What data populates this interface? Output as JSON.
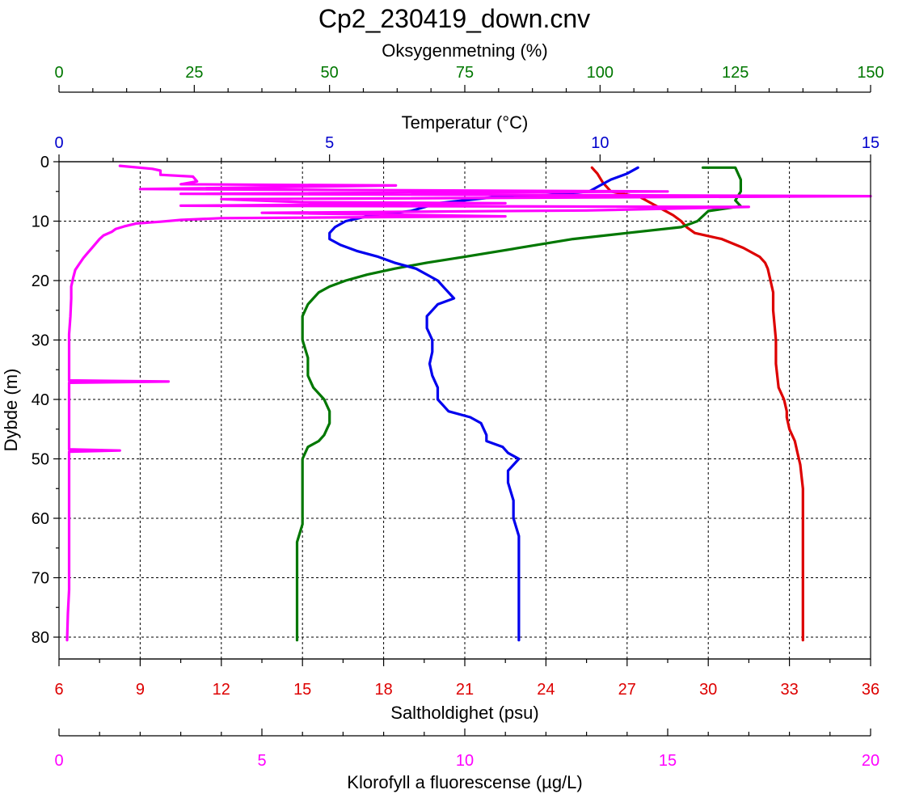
{
  "chart_data": {
    "type": "line",
    "title": "Cp2_230419_down.cnv",
    "y_axis": {
      "label": "Dybde (m)",
      "range": [
        0,
        85
      ],
      "ticks": [
        0,
        10,
        20,
        30,
        40,
        50,
        60,
        70,
        80
      ],
      "inverted": true
    },
    "axes": {
      "oxygen": {
        "label": "Oksygenmetning (%)",
        "range": [
          0,
          150
        ],
        "ticks": [
          0,
          25,
          50,
          75,
          100,
          125,
          150
        ],
        "color": "#007700",
        "position": "top-outer"
      },
      "temperature": {
        "label": "Temperatur (°C)",
        "range": [
          0,
          15
        ],
        "ticks": [
          0,
          5,
          10,
          15
        ],
        "color": "#0000cc",
        "position": "top-inner"
      },
      "salinity": {
        "label": "Saltholdighet (psu)",
        "range": [
          6,
          36
        ],
        "ticks": [
          6,
          9,
          12,
          15,
          18,
          21,
          24,
          27,
          30,
          33,
          36
        ],
        "color": "#dd0000",
        "position": "bottom-inner"
      },
      "chlorophyll": {
        "label": "Klorofyll a fluorescense (µg/L)",
        "range": [
          0,
          20
        ],
        "ticks": [
          0,
          5,
          10,
          15,
          20
        ],
        "color": "#ff00ff",
        "position": "bottom-outer"
      }
    },
    "series": [
      {
        "name": "Temperatur",
        "axis": "temperature",
        "color": "#0000ee",
        "points": [
          [
            10.7,
            1
          ],
          [
            10.5,
            2
          ],
          [
            10.2,
            3
          ],
          [
            10.0,
            4
          ],
          [
            9.8,
            5
          ],
          [
            9.0,
            5.6
          ],
          [
            8.0,
            6.0
          ],
          [
            7.0,
            7.0
          ],
          [
            6.5,
            8.3
          ],
          [
            5.8,
            9.0
          ],
          [
            5.3,
            10
          ],
          [
            5.1,
            11
          ],
          [
            5.0,
            12
          ],
          [
            5.0,
            13
          ],
          [
            5.2,
            14
          ],
          [
            5.5,
            15
          ],
          [
            5.9,
            16
          ],
          [
            6.2,
            17
          ],
          [
            6.6,
            18
          ],
          [
            6.8,
            19
          ],
          [
            7.0,
            20
          ],
          [
            7.1,
            21
          ],
          [
            7.2,
            22
          ],
          [
            7.3,
            23
          ],
          [
            7.0,
            24
          ],
          [
            6.9,
            25
          ],
          [
            6.8,
            26
          ],
          [
            6.8,
            28
          ],
          [
            6.9,
            30
          ],
          [
            6.9,
            32
          ],
          [
            6.85,
            34
          ],
          [
            6.9,
            36
          ],
          [
            7.0,
            38
          ],
          [
            7.0,
            40
          ],
          [
            7.1,
            41
          ],
          [
            7.2,
            42
          ],
          [
            7.6,
            43
          ],
          [
            7.8,
            44
          ],
          [
            7.9,
            46
          ],
          [
            7.9,
            47
          ],
          [
            8.2,
            48
          ],
          [
            8.3,
            49
          ],
          [
            8.5,
            50
          ],
          [
            8.3,
            52
          ],
          [
            8.3,
            54
          ],
          [
            8.4,
            57
          ],
          [
            8.4,
            60
          ],
          [
            8.5,
            63
          ],
          [
            8.5,
            66
          ],
          [
            8.5,
            70
          ],
          [
            8.5,
            73
          ],
          [
            8.5,
            77
          ],
          [
            8.5,
            80.5
          ]
        ]
      },
      {
        "name": "Oksygenmetning",
        "axis": "oxygen",
        "color": "#007700",
        "points": [
          [
            119,
            1
          ],
          [
            125,
            1
          ],
          [
            126,
            3
          ],
          [
            126,
            5
          ],
          [
            125,
            6.5
          ],
          [
            126,
            7.5
          ],
          [
            120,
            8.3
          ],
          [
            118,
            10
          ],
          [
            115,
            11
          ],
          [
            105,
            12
          ],
          [
            95,
            13
          ],
          [
            85,
            14.5
          ],
          [
            75,
            16
          ],
          [
            68,
            17
          ],
          [
            62,
            18
          ],
          [
            57,
            19
          ],
          [
            53,
            20
          ],
          [
            50,
            21
          ],
          [
            48,
            22
          ],
          [
            47,
            23
          ],
          [
            46,
            24
          ],
          [
            45,
            26
          ],
          [
            45,
            28
          ],
          [
            45,
            30
          ],
          [
            46,
            33
          ],
          [
            46,
            36
          ],
          [
            47,
            38
          ],
          [
            49,
            40
          ],
          [
            50,
            42
          ],
          [
            50,
            44
          ],
          [
            49,
            46
          ],
          [
            48,
            47
          ],
          [
            46,
            48
          ],
          [
            45,
            50
          ],
          [
            45,
            52
          ],
          [
            45,
            55
          ],
          [
            45,
            58
          ],
          [
            45,
            61
          ],
          [
            44,
            64
          ],
          [
            44,
            67
          ],
          [
            44,
            70
          ],
          [
            44,
            74
          ],
          [
            44,
            78
          ],
          [
            44,
            80.5
          ]
        ]
      },
      {
        "name": "Saltholdighet",
        "axis": "salinity",
        "color": "#dd0000",
        "points": [
          [
            25.7,
            1
          ],
          [
            25.9,
            2
          ],
          [
            26.1,
            3.5
          ],
          [
            26.4,
            5
          ],
          [
            27.5,
            6
          ],
          [
            28.3,
            8
          ],
          [
            28.7,
            9
          ],
          [
            29.0,
            10
          ],
          [
            29.2,
            11
          ],
          [
            29.5,
            12
          ],
          [
            30.5,
            13
          ],
          [
            31.3,
            14.5
          ],
          [
            31.9,
            16
          ],
          [
            32.1,
            17
          ],
          [
            32.2,
            18
          ],
          [
            32.3,
            20
          ],
          [
            32.4,
            22
          ],
          [
            32.4,
            25
          ],
          [
            32.5,
            30
          ],
          [
            32.5,
            34
          ],
          [
            32.6,
            38
          ],
          [
            32.8,
            40
          ],
          [
            32.9,
            42
          ],
          [
            32.9,
            43
          ],
          [
            33.0,
            45
          ],
          [
            33.2,
            47
          ],
          [
            33.3,
            49
          ],
          [
            33.4,
            51
          ],
          [
            33.5,
            55
          ],
          [
            33.5,
            60
          ],
          [
            33.5,
            65
          ],
          [
            33.5,
            70
          ],
          [
            33.5,
            75
          ],
          [
            33.5,
            80.5
          ]
        ]
      },
      {
        "name": "Klorofyll a fluorescense",
        "axis": "chlorophyll",
        "color": "#ff00ff",
        "points": [
          [
            1.5,
            0.7
          ],
          [
            2.3,
            1.2
          ],
          [
            2.5,
            1.5
          ],
          [
            2.5,
            2.2
          ],
          [
            3.3,
            2.5
          ],
          [
            3.4,
            3.3
          ],
          [
            3.0,
            3.8
          ],
          [
            8.3,
            4.0
          ],
          [
            2.0,
            4.6
          ],
          [
            15.0,
            5.0
          ],
          [
            3.0,
            5.4
          ],
          [
            20.0,
            5.8
          ],
          [
            4.0,
            6.3
          ],
          [
            6.0,
            6.8
          ],
          [
            11.0,
            7.0
          ],
          [
            3.0,
            7.4
          ],
          [
            17.0,
            7.6
          ],
          [
            13.0,
            8.2
          ],
          [
            5.0,
            8.6
          ],
          [
            11.0,
            9.2
          ],
          [
            4.0,
            9.5
          ],
          [
            3.0,
            9.8
          ],
          [
            2.5,
            10.1
          ],
          [
            1.9,
            10.4
          ],
          [
            1.6,
            10.9
          ],
          [
            1.4,
            11.3
          ],
          [
            1.3,
            11.8
          ],
          [
            1.1,
            12.4
          ],
          [
            1.0,
            13.0
          ],
          [
            0.9,
            13.8
          ],
          [
            0.8,
            14.6
          ],
          [
            0.7,
            15.4
          ],
          [
            0.6,
            16.2
          ],
          [
            0.5,
            17.2
          ],
          [
            0.4,
            18.2
          ],
          [
            0.35,
            19.5
          ],
          [
            0.3,
            21
          ],
          [
            0.3,
            23
          ],
          [
            0.28,
            26
          ],
          [
            0.25,
            29
          ],
          [
            0.25,
            32
          ],
          [
            0.25,
            35
          ],
          [
            0.25,
            36.8
          ],
          [
            2.7,
            37.0
          ],
          [
            0.25,
            37.2
          ],
          [
            0.25,
            40
          ],
          [
            0.25,
            43
          ],
          [
            0.25,
            46
          ],
          [
            0.25,
            48.4
          ],
          [
            1.5,
            48.6
          ],
          [
            0.25,
            48.8
          ],
          [
            0.25,
            51
          ],
          [
            0.25,
            54
          ],
          [
            0.25,
            57
          ],
          [
            0.25,
            60
          ],
          [
            0.25,
            64
          ],
          [
            0.25,
            68
          ],
          [
            0.25,
            72
          ],
          [
            0.22,
            76
          ],
          [
            0.2,
            80.5
          ]
        ]
      }
    ]
  }
}
